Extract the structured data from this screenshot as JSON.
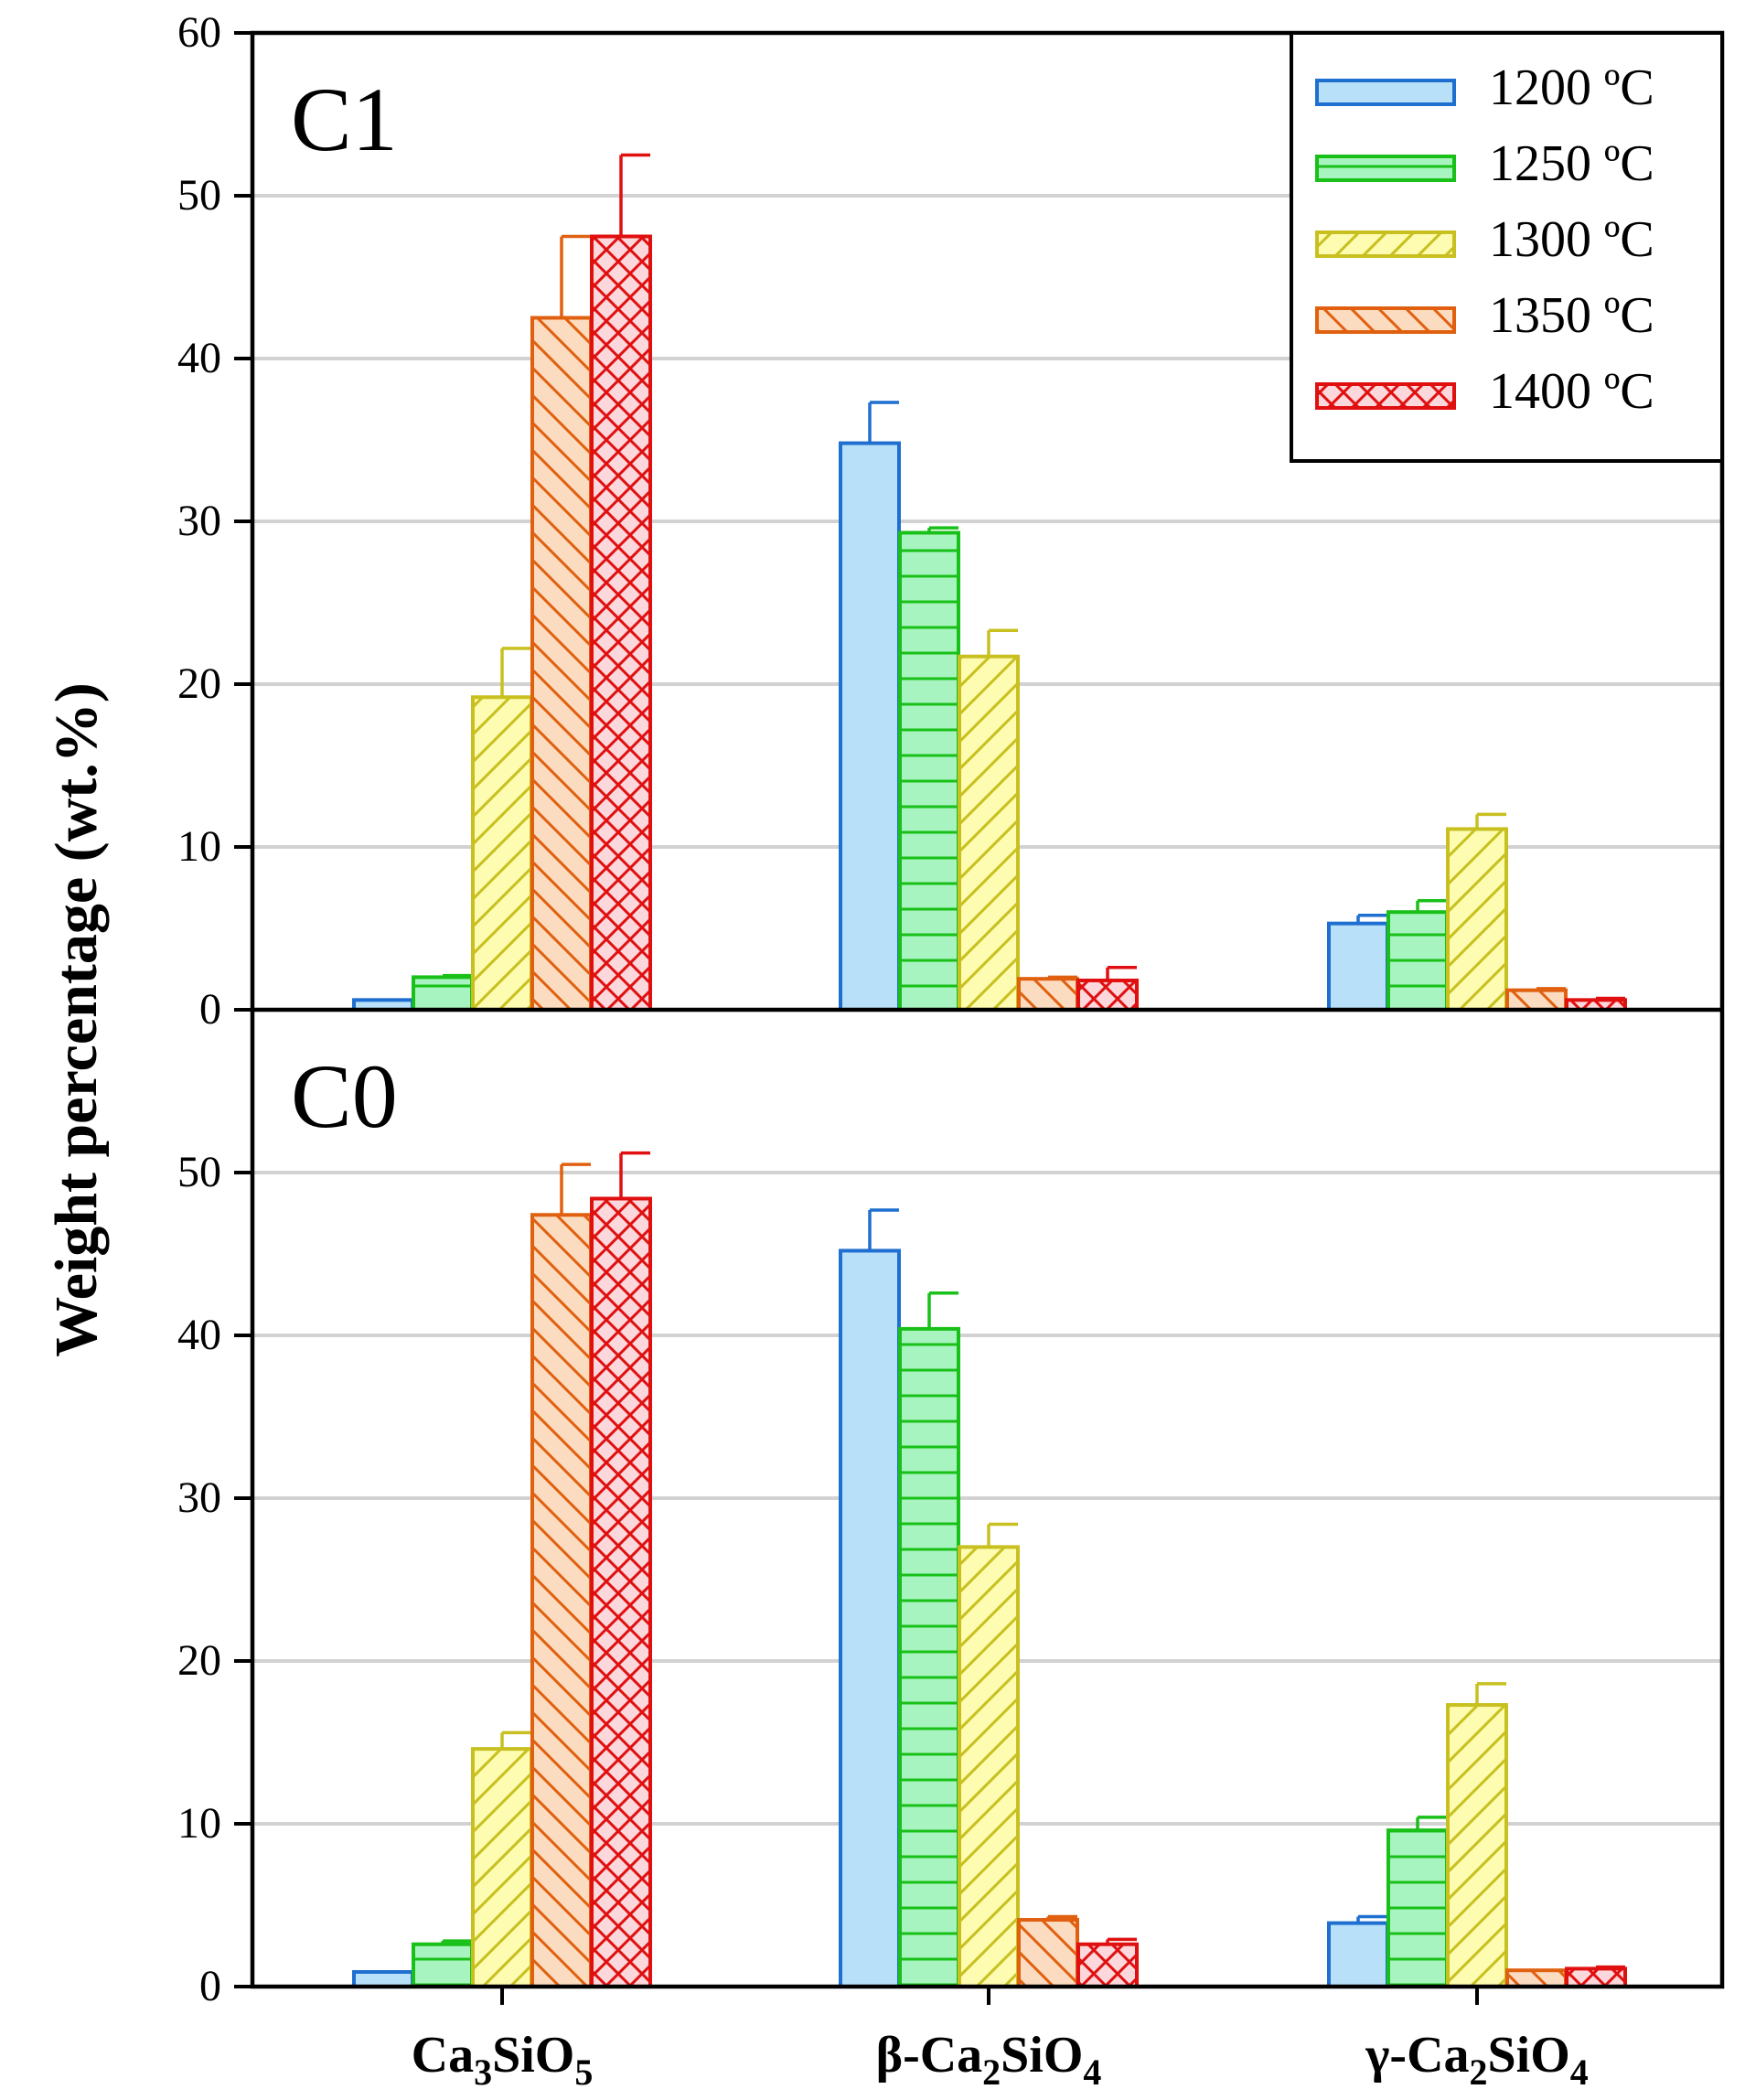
{
  "chart_data": {
    "type": "bar",
    "ylabel": "Weight percentage (wt.%)",
    "categories": [
      {
        "base": "Ca",
        "sub1": "3",
        "mid": "SiO",
        "sub2": "5"
      },
      {
        "base": "β-Ca",
        "sub1": "2",
        "mid": "SiO",
        "sub2": "4"
      },
      {
        "base": "γ-Ca",
        "sub1": "2",
        "mid": "SiO",
        "sub2": "4"
      }
    ],
    "series": [
      {
        "name": "1200 ºC",
        "pattern": "solid",
        "stroke": "#1f6fd1",
        "fill": "#b8e0f8"
      },
      {
        "name": "1250 ºC",
        "pattern": "hlines",
        "stroke": "#18c018",
        "fill": "#a8f4c0"
      },
      {
        "name": "1300 ºC",
        "pattern": "fdiag",
        "stroke": "#c8c020",
        "fill": "#fdfcb0"
      },
      {
        "name": "1350 ºC",
        "pattern": "bdiag",
        "stroke": "#e06010",
        "fill": "#fcdcc0"
      },
      {
        "name": "1400 ºC",
        "pattern": "cross",
        "stroke": "#e01010",
        "fill": "#fcd8dc"
      }
    ],
    "panels": [
      {
        "label": "C1",
        "ylim": [
          0,
          60
        ],
        "yticks": [
          "0",
          "10",
          "20",
          "30",
          "40",
          "50",
          "60"
        ],
        "values": [
          [
            0.6,
            2.0,
            19.2,
            42.5,
            47.5
          ],
          [
            34.8,
            29.3,
            21.7,
            1.9,
            1.8
          ],
          [
            5.3,
            6.0,
            11.1,
            1.2,
            0.6
          ]
        ],
        "errors": [
          [
            0.0,
            0.1,
            3.0,
            5.0,
            5.0
          ],
          [
            2.5,
            0.3,
            1.6,
            0.1,
            0.8
          ],
          [
            0.5,
            0.7,
            0.9,
            0.1,
            0.1
          ]
        ]
      },
      {
        "label": "C0",
        "ylim": [
          0,
          60
        ],
        "yticks": [
          "0",
          "10",
          "20",
          "30",
          "40",
          "50"
        ],
        "values": [
          [
            0.9,
            2.6,
            14.6,
            47.4,
            48.4
          ],
          [
            45.2,
            40.4,
            27.0,
            4.1,
            2.6
          ],
          [
            3.9,
            9.6,
            17.3,
            1.0,
            1.1
          ]
        ],
        "errors": [
          [
            0.0,
            0.2,
            1.0,
            3.1,
            2.8
          ],
          [
            2.5,
            2.2,
            1.4,
            0.2,
            0.3
          ],
          [
            0.4,
            0.8,
            1.3,
            0.0,
            0.1
          ]
        ]
      }
    ],
    "grid": true,
    "legend_position": "top-right"
  }
}
